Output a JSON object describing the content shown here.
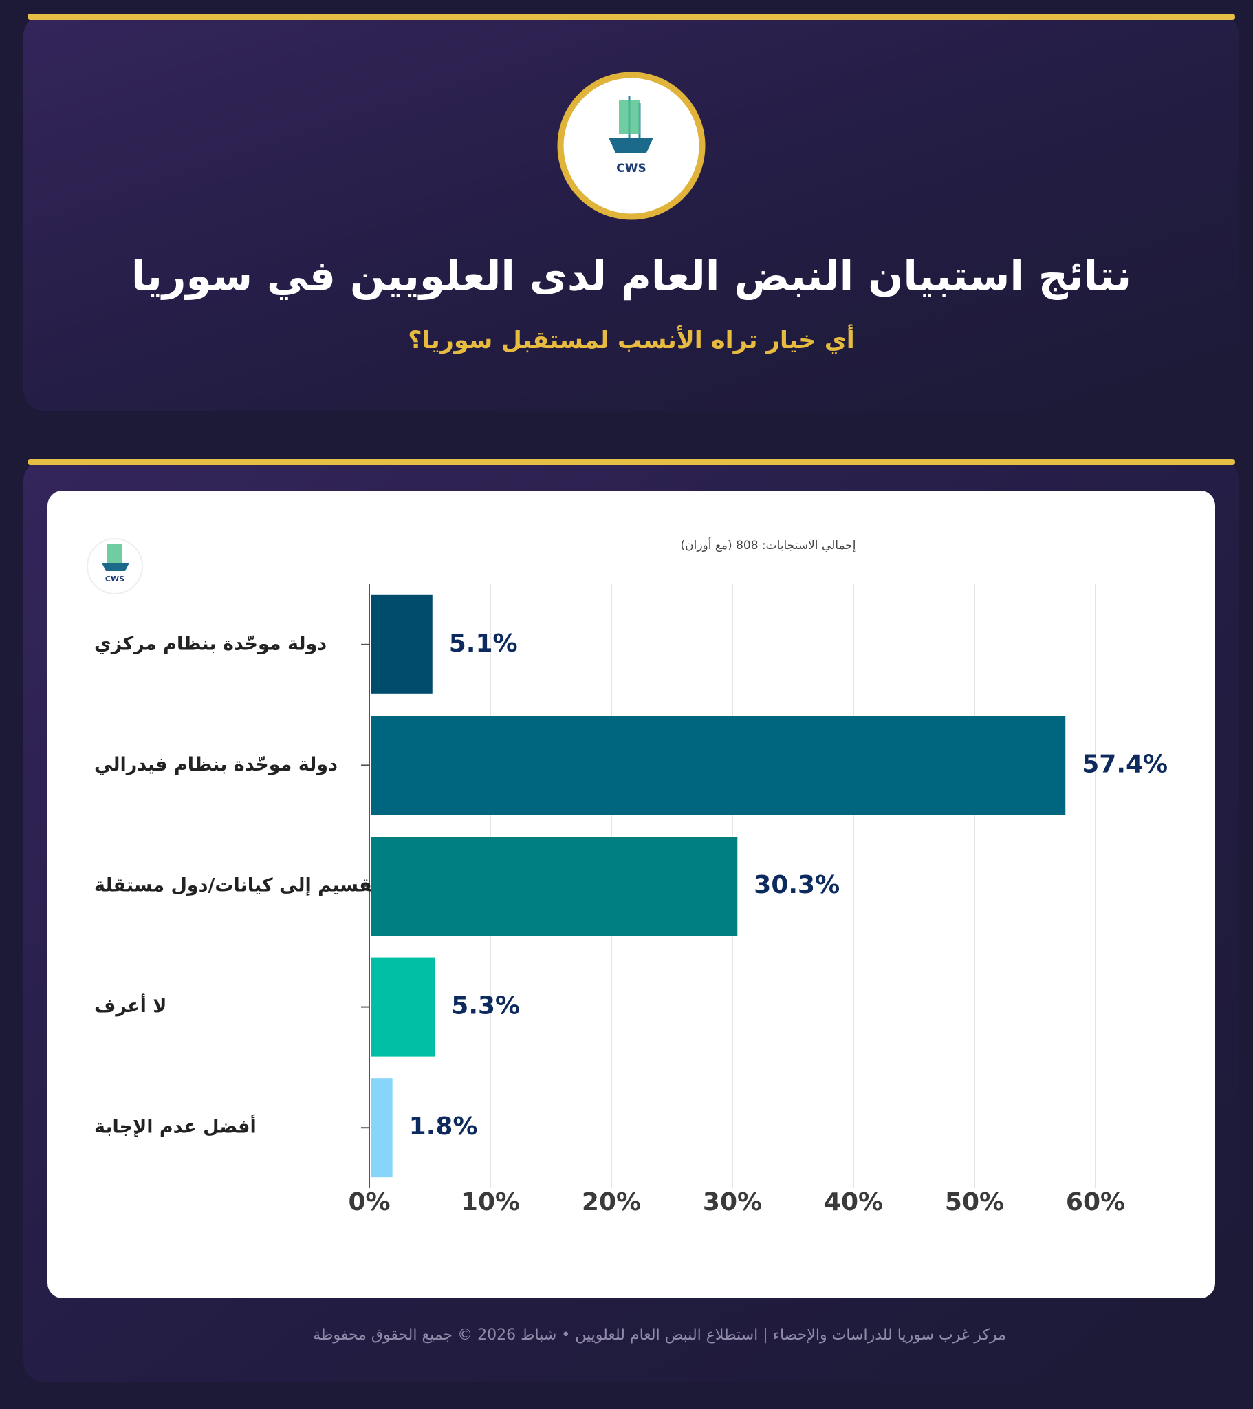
{
  "header": {
    "logo_text": "CWS",
    "title": "نتائج استبيان النبض العام لدى العلويين في سوريا",
    "subtitle": "أي خيار تراه الأنسب لمستقبل سوريا؟"
  },
  "chart_data": {
    "type": "bar",
    "orientation": "horizontal",
    "logo_text": "CWS",
    "note": "إجمالي الاستجابات: 808 (مع أوزان)",
    "categories": [
      "دولة موحّدة بنظام مركزي",
      "دولة موحّدة بنظام فيدرالي",
      "تقسيم إلى كيانات/دول مستقلة",
      "لا أعرف",
      "أفضل عدم الإجابة"
    ],
    "values": [
      5.1,
      57.4,
      30.3,
      5.3,
      1.8
    ],
    "value_labels": [
      "5.1%",
      "57.4%",
      "30.3%",
      "5.3%",
      "1.8%"
    ],
    "colors": [
      "#004c6d",
      "#00667f",
      "#007f80",
      "#00bfa4",
      "#87d6fa"
    ],
    "xlim": [
      0,
      65
    ],
    "xticks": [
      {
        "value": 0,
        "label": "0%"
      },
      {
        "value": 10,
        "label": "10%"
      },
      {
        "value": 20,
        "label": "20%"
      },
      {
        "value": 30,
        "label": "30%"
      },
      {
        "value": 40,
        "label": "40%"
      },
      {
        "value": 50,
        "label": "50%"
      },
      {
        "value": 60,
        "label": "60%"
      }
    ],
    "grid": true
  },
  "footer": "مركز غرب سوريا للدراسات والإحصاء | استطلاع النبض العام للعلويين • شباط 2026 © جميع الحقوق محفوظة"
}
